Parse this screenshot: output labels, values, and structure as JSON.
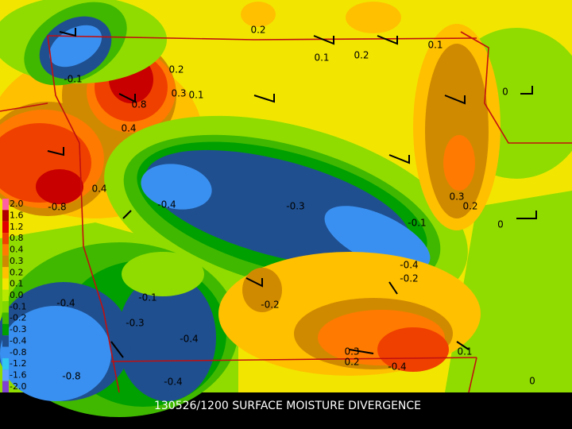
{
  "title": "130526/1200 SURFACE MOISTURE DIVERGENCE",
  "legend": {
    "labels": [
      "2.0",
      "1.6",
      "1.2",
      "0.8",
      "0.4",
      "0.3",
      "0.2",
      "0.1",
      "0.0",
      "-0.1",
      "-0.2",
      "-0.3",
      "-0.4",
      "-0.8",
      "-1.2",
      "-1.6",
      "-2.0"
    ],
    "colors": [
      "#ff60a0",
      "#b00000",
      "#e00000",
      "#f04000",
      "#ff7a00",
      "#d08a00",
      "#ffc000",
      "#f2e600",
      "#b8e800",
      "#80d800",
      "#40b800",
      "#00a000",
      "#1f4f8f",
      "#3a90f0",
      "#30c8f0",
      "#60a0ff",
      "#8040d0"
    ]
  },
  "contour_labels": [
    "0.2",
    "0.1",
    "0.2",
    "0.1",
    "0",
    "-0.1",
    "0.2",
    "0.8",
    "0.3",
    "0.1",
    "0.4",
    "0.4",
    "-0.8",
    "-0.4",
    "-0.3",
    "0.3",
    "0.2",
    "0",
    "-0.1",
    "-0.4",
    "-0.2",
    "-0.4",
    "-0.1",
    "-0.3",
    "-0.2",
    "-0.4",
    "0.3",
    "0.2",
    "-0.4",
    "0.1",
    "-0.8",
    "-0.4",
    "0"
  ]
}
